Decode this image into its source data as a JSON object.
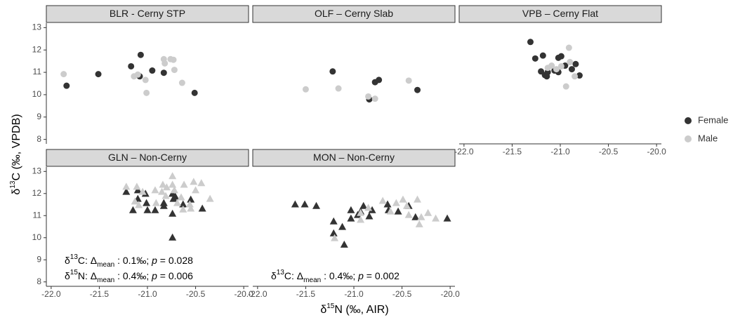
{
  "chart_data": [
    {
      "type": "scatter",
      "title": "BLR - Cerny STP",
      "marker": "circle",
      "xaxis": false,
      "yaxis": true,
      "xlim": [
        -22.05,
        -19.95
      ],
      "ylim": [
        7.8,
        13.2
      ],
      "yticks": [
        8,
        9,
        10,
        11,
        12,
        13
      ],
      "ylabel": [
        {
          "text": "δ"
        },
        {
          "text": "13",
          "shift": "sup"
        },
        {
          "text": "C (‰, VPDB)"
        }
      ],
      "xlabel": [
        {
          "text": "δ"
        },
        {
          "text": "15",
          "shift": "sup"
        },
        {
          "text": "N (‰, AIR)"
        }
      ],
      "legend": "right",
      "series": [
        {
          "name": "Female",
          "color": "#333333",
          "x": [
            -21.84,
            -21.51,
            -21.17,
            -21.07,
            -21.08,
            -20.95,
            -20.83,
            -20.51
          ],
          "values": [
            10.4,
            10.92,
            11.27,
            11.78,
            10.82,
            11.08,
            10.98,
            10.08
          ]
        },
        {
          "name": "Male",
          "color": "#cccccc",
          "x": [
            -21.87,
            -21.14,
            -21.02,
            -21.01,
            -20.83,
            -20.82,
            -20.76,
            -20.73,
            -20.72,
            -20.64,
            -21.1
          ],
          "values": [
            10.92,
            10.82,
            10.66,
            10.08,
            11.59,
            11.4,
            11.59,
            11.56,
            11.11,
            10.53,
            10.9
          ]
        }
      ]
    },
    {
      "type": "scatter",
      "title": "OLF – Cerny Slab",
      "marker": "circle",
      "xaxis": false,
      "yaxis": false,
      "xlim": [
        -22.05,
        -19.95
      ],
      "ylim": [
        7.8,
        13.2
      ],
      "series": [
        {
          "name": "Female",
          "color": "#333333",
          "x": [
            -21.22,
            -20.78,
            -20.74,
            -20.84,
            -20.34
          ],
          "values": [
            11.04,
            10.56,
            10.66,
            9.79,
            10.21
          ]
        },
        {
          "name": "Male",
          "color": "#cccccc",
          "x": [
            -21.5,
            -21.16,
            -20.85,
            -20.78,
            -20.43
          ],
          "values": [
            10.24,
            10.28,
            9.92,
            9.82,
            10.63
          ]
        }
      ]
    },
    {
      "type": "scatter",
      "title": "VPB – Cerny Flat",
      "marker": "circle",
      "xaxis": true,
      "yaxis": false,
      "xlim": [
        -22.05,
        -19.95
      ],
      "ylim": [
        7.8,
        13.2
      ],
      "xticks": [
        {
          "value": -22,
          "label": "-22.0"
        },
        {
          "value": -21.5,
          "label": "-21.5"
        },
        {
          "value": -21,
          "label": "-21.0"
        },
        {
          "value": -20.5,
          "label": "-20.5"
        },
        {
          "value": -20,
          "label": "-20.0"
        }
      ],
      "series": [
        {
          "name": "Female",
          "color": "#333333",
          "x": [
            -21.31,
            -21.26,
            -21.18,
            -21.2,
            -21.16,
            -21.13,
            -21.14,
            -21.02,
            -20.99,
            -21.02,
            -20.95,
            -20.88,
            -20.84,
            -20.8,
            -21.06
          ],
          "values": [
            12.36,
            11.62,
            11.75,
            11.04,
            10.88,
            11.01,
            10.82,
            11.65,
            11.72,
            11.01,
            11.3,
            11.14,
            11.37,
            10.86,
            11.08
          ]
        },
        {
          "name": "Male",
          "color": "#cccccc",
          "x": [
            -21.09,
            -21.04,
            -20.99,
            -20.91,
            -20.9,
            -20.94,
            -20.85,
            -21.13
          ],
          "values": [
            11.3,
            11.14,
            11.27,
            12.1,
            11.46,
            10.37,
            10.82,
            11.2
          ]
        }
      ]
    },
    {
      "type": "scatter",
      "title": "GLN – Non-Cerny",
      "marker": "triangle",
      "xaxis": true,
      "yaxis": true,
      "xlim": [
        -22.05,
        -19.95
      ],
      "ylim": [
        7.8,
        13.2
      ],
      "yticks": [
        8,
        9,
        10,
        11,
        12,
        13
      ],
      "xticks": [
        {
          "value": -22,
          "label": "-22.0"
        },
        {
          "value": -21.5,
          "label": "-21.5"
        },
        {
          "value": -21,
          "label": "-21.0"
        },
        {
          "value": -20.5,
          "label": "-20.5"
        },
        {
          "value": -20,
          "label": "-20.0"
        }
      ],
      "annotations": [
        [
          {
            "text": "δ"
          },
          {
            "text": "13",
            "shift": "sup"
          },
          {
            "text": "C: Δ"
          },
          {
            "text": "mean",
            "shift": "sub"
          },
          {
            "text": " : 0.1‰; "
          },
          {
            "text": "p",
            "italic": true
          },
          {
            "text": " = 0.028"
          }
        ],
        [
          {
            "text": "δ"
          },
          {
            "text": "15",
            "shift": "sup"
          },
          {
            "text": "N: Δ"
          },
          {
            "text": "mean",
            "shift": "sub"
          },
          {
            "text": " : 0.4‰; "
          },
          {
            "text": "p",
            "italic": true
          },
          {
            "text": " = 0.006"
          }
        ]
      ],
      "series": [
        {
          "name": "Female",
          "color": "#333333",
          "x": [
            -21.22,
            -21.1,
            -21.1,
            -21.02,
            -21.01,
            -21.0,
            -21.15,
            -20.92,
            -20.83,
            -20.83,
            -20.74,
            -20.73,
            -20.74,
            -20.63,
            -20.55,
            -20.43,
            -20.74,
            -20.71
          ],
          "values": [
            12.07,
            12.14,
            11.75,
            11.98,
            11.56,
            11.24,
            11.24,
            11.24,
            11.56,
            11.43,
            11.98,
            11.75,
            11.08,
            11.5,
            11.72,
            11.31,
            10.0,
            11.85
          ]
        },
        {
          "name": "Male",
          "color": "#cccccc",
          "x": [
            -21.22,
            -21.11,
            -21.13,
            -21.05,
            -20.92,
            -20.91,
            -20.85,
            -20.84,
            -20.8,
            -20.74,
            -20.74,
            -20.72,
            -20.69,
            -20.65,
            -20.63,
            -20.62,
            -20.56,
            -20.55,
            -20.52,
            -20.5,
            -20.44,
            -20.35,
            -20.81,
            -21.09
          ],
          "values": [
            12.3,
            12.3,
            11.63,
            12.07,
            12.14,
            11.56,
            12.07,
            12.39,
            12.27,
            12.78,
            12.39,
            12.14,
            11.56,
            11.82,
            11.27,
            12.39,
            11.5,
            11.31,
            12.52,
            12.14,
            12.46,
            11.75,
            11.88,
            11.47
          ]
        }
      ]
    },
    {
      "type": "scatter",
      "title": "MON – Non-Cerny",
      "marker": "triangle",
      "xaxis": true,
      "yaxis": false,
      "xlim": [
        -22.05,
        -19.95
      ],
      "ylim": [
        7.8,
        13.2
      ],
      "xticks": [
        {
          "value": -22,
          "label": "-22.0"
        },
        {
          "value": -21.5,
          "label": "-21.5"
        },
        {
          "value": -21,
          "label": "-21.0"
        },
        {
          "value": -20.5,
          "label": "-20.5"
        },
        {
          "value": -20,
          "label": "-20.0"
        }
      ],
      "annotations": [
        [
          {
            "text": "δ"
          },
          {
            "text": "13",
            "shift": "sup"
          },
          {
            "text": "C: Δ"
          },
          {
            "text": "mean",
            "shift": "sub"
          },
          {
            "text": " : 0.4‰; "
          },
          {
            "text": "p",
            "italic": true
          },
          {
            "text": " = 0.002"
          }
        ]
      ],
      "series": [
        {
          "name": "Female",
          "color": "#333333",
          "x": [
            -21.61,
            -21.51,
            -21.39,
            -21.21,
            -21.21,
            -21.12,
            -21.1,
            -21.03,
            -21.03,
            -20.96,
            -20.93,
            -20.9,
            -20.84,
            -20.81,
            -20.65,
            -20.64,
            -20.54,
            -20.43,
            -20.36,
            -20.03
          ],
          "values": [
            11.5,
            11.5,
            11.43,
            10.73,
            10.19,
            10.48,
            9.68,
            11.24,
            10.86,
            11.02,
            11.18,
            11.43,
            10.96,
            11.24,
            11.5,
            11.24,
            11.18,
            11.43,
            10.92,
            10.86
          ]
        },
        {
          "name": "Male",
          "color": "#cccccc",
          "x": [
            -21.2,
            -20.93,
            -20.85,
            -20.7,
            -20.62,
            -20.56,
            -20.49,
            -20.45,
            -20.43,
            -20.34,
            -20.32,
            -20.3,
            -20.23,
            -20.15,
            -20.93
          ],
          "values": [
            9.97,
            10.8,
            11.34,
            11.66,
            11.18,
            11.56,
            11.72,
            11.43,
            11.02,
            11.72,
            10.6,
            10.92,
            11.11,
            10.86,
            11.11
          ]
        }
      ]
    }
  ]
}
